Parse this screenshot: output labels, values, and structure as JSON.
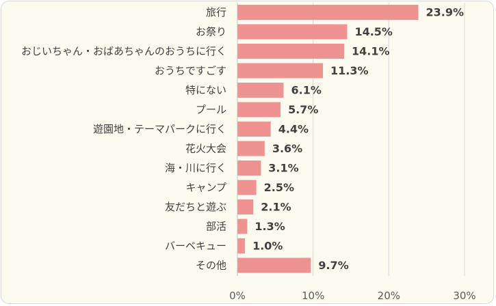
{
  "chart_data": {
    "type": "bar",
    "orientation": "horizontal",
    "categories": [
      "旅行",
      "お祭り",
      "おじいちゃん・おばあちゃんのおうちに行く",
      "おうちですごす",
      "特にない",
      "プール",
      "遊園地・テーマパークに行く",
      "花火大会",
      "海・川に行く",
      "キャンプ",
      "友だちと遊ぶ",
      "部活",
      "バーベキュー",
      "その他"
    ],
    "values": [
      23.9,
      14.5,
      14.1,
      11.3,
      6.1,
      5.7,
      4.4,
      3.6,
      3.1,
      2.5,
      2.1,
      1.3,
      1.0,
      9.7
    ],
    "value_labels": [
      "23.9%",
      "14.5%",
      "14.1%",
      "11.3%",
      "6.1%",
      "5.7%",
      "4.4%",
      "3.6%",
      "3.1%",
      "2.5%",
      "2.1%",
      "1.3%",
      "1.0%",
      "9.7%"
    ],
    "x_ticks": [
      0,
      10,
      20,
      30
    ],
    "x_tick_labels": [
      "0%",
      "10%",
      "20%",
      "30%"
    ],
    "xlim": [
      0,
      30
    ],
    "grid": true,
    "bar_color": "#ef9292",
    "background_color": "#fdfbef"
  }
}
